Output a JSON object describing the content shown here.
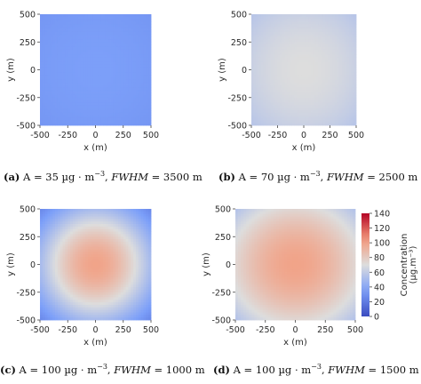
{
  "chart_data": {
    "type": "heatmap",
    "colorbar": {
      "label_line1": "Concentration",
      "label_line2": "(µg.m⁻³)",
      "range": [
        0,
        140
      ],
      "ticks": [
        "0",
        "20",
        "40",
        "60",
        "80",
        "100",
        "120",
        "140"
      ],
      "colormap": "coolwarm"
    },
    "panels": [
      {
        "id": "a",
        "caption": {
          "tag": "(a)",
          "amp_text": "A = 35 µg · m",
          "exp": "−3",
          "fwhm_label": "FWHM",
          "fwhm_text": " = 3500 m"
        },
        "amplitude": 35,
        "fwhm": 3500,
        "xlabel": "x (m)",
        "ylabel": "y (m)",
        "xlim": [
          -500,
          500
        ],
        "ylim": [
          -500,
          500
        ],
        "x_ticks": [
          "-500",
          "-250",
          "0",
          "250",
          "500"
        ],
        "y_ticks": [
          "500",
          "250",
          "0",
          "-250",
          "-500"
        ]
      },
      {
        "id": "b",
        "caption": {
          "tag": "(b)",
          "amp_text": "A = 70 µg · m",
          "exp": "−3",
          "fwhm_label": "FWHM",
          "fwhm_text": " = 2500 m"
        },
        "amplitude": 70,
        "fwhm": 2500,
        "xlabel": "x (m)",
        "ylabel": "y (m)",
        "xlim": [
          -500,
          500
        ],
        "ylim": [
          -500,
          500
        ],
        "x_ticks": [
          "-500",
          "-250",
          "0",
          "250",
          "500"
        ],
        "y_ticks": [
          "500",
          "250",
          "0",
          "-250",
          "-500"
        ]
      },
      {
        "id": "c",
        "caption": {
          "tag": "(c)",
          "amp_text": "A = 100 µg · m",
          "exp": "−3",
          "fwhm_label": "FWHM",
          "fwhm_text": " = 1000 m"
        },
        "amplitude": 100,
        "fwhm": 1000,
        "xlabel": "x (m)",
        "ylabel": "y (m)",
        "xlim": [
          -500,
          500
        ],
        "ylim": [
          -500,
          500
        ],
        "x_ticks": [
          "-500",
          "-250",
          "0",
          "250",
          "500"
        ],
        "y_ticks": [
          "500",
          "250",
          "0",
          "-250",
          "-500"
        ]
      },
      {
        "id": "d",
        "caption": {
          "tag": "(d)",
          "amp_text": "A = 100 µg · m",
          "exp": "−3",
          "fwhm_label": "FWHM",
          "fwhm_text": " = 1500 m"
        },
        "amplitude": 100,
        "fwhm": 1500,
        "xlabel": "x (m)",
        "ylabel": "y (m)",
        "xlim": [
          -500,
          500
        ],
        "ylim": [
          -500,
          500
        ],
        "x_ticks": [
          "-500",
          "-250",
          "0",
          "250",
          "500"
        ],
        "y_ticks": [
          "500",
          "250",
          "0",
          "-250",
          "-500"
        ]
      }
    ]
  }
}
